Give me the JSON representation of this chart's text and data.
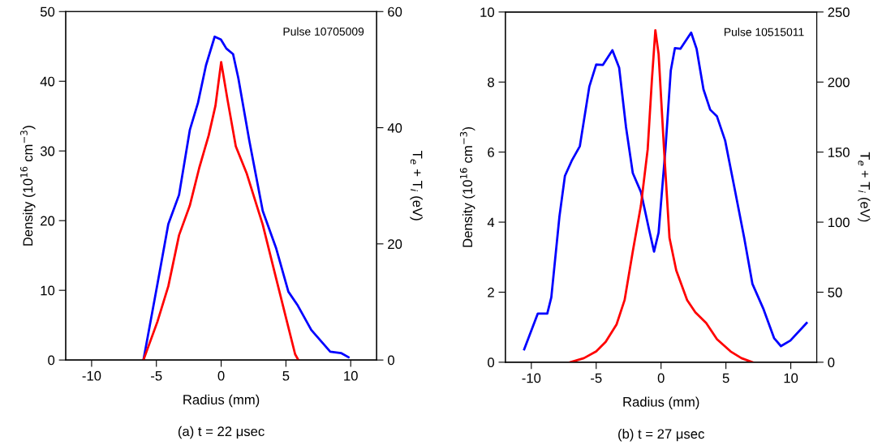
{
  "chart_data": [
    {
      "type": "line",
      "xlabel": "Radius (mm)",
      "ylabel": "Density (10$^{16}$ cm$^{−3}$)",
      "y2label": "T$_{e}$ + T$_{i}$ (eV)",
      "annotations": [
        "Pulse 10705009",
        "(a) t = 22 μsec"
      ],
      "xlim": [
        -12,
        12
      ],
      "xticks": [
        -10,
        -5,
        0,
        5,
        10
      ],
      "ylim": [
        0,
        50
      ],
      "yticks": [
        0,
        10,
        20,
        30,
        40,
        50
      ],
      "y2lim": [
        0,
        60
      ],
      "y2ticks": [
        0,
        20,
        40,
        60
      ],
      "grid": false,
      "legend": false,
      "line_style": "solid",
      "marker": "none",
      "series": [
        {
          "color": "#0000ff",
          "x": [
            -6,
            -4.92,
            -4.08,
            -3.25,
            -2.42,
            -1.79,
            -1.17,
            -0.5,
            -0.02,
            0.4,
            0.92,
            1.33,
            2.17,
            3.21,
            4.25,
            5.19,
            5.92,
            6.96,
            8.42,
            9.25,
            9.83
          ],
          "values": [
            0,
            10.9,
            19.5,
            23.7,
            33,
            36.9,
            42.3,
            46.4,
            46,
            44.7,
            43.9,
            40.4,
            31.5,
            21.4,
            16,
            9.8,
            7.8,
            4.3,
            1.2,
            1.0,
            0.4
          ]
        },
        {
          "color": "#ff0000",
          "axis": "y2",
          "x": [
            -6,
            -4.92,
            -4.08,
            -3.25,
            -2.42,
            -1.69,
            -0.96,
            -0.44,
            0,
            0.5,
            1.13,
            1.96,
            3.21,
            4.25,
            5.08,
            5.71,
            5.96
          ],
          "values": [
            0,
            6.6,
            12.7,
            21.5,
            26.6,
            33.1,
            38.7,
            43.8,
            51.3,
            44.7,
            36.8,
            32.2,
            23.3,
            14,
            6.6,
            1.0,
            0
          ]
        }
      ]
    },
    {
      "type": "line",
      "xlabel": "Radius (mm)",
      "ylabel": "Density (10$^{16}$ cm$^{−3}$)",
      "y2label": "T$_{e}$ + T$_{i}$ (eV)",
      "annotations": [
        "Pulse 10515011",
        "(b) t = 27 μsec"
      ],
      "xlim": [
        -12,
        12
      ],
      "xticks": [
        -10,
        -5,
        0,
        5,
        10
      ],
      "ylim": [
        0,
        10
      ],
      "yticks": [
        0,
        2,
        4,
        6,
        8,
        10
      ],
      "y2lim": [
        0,
        250
      ],
      "y2ticks": [
        0,
        50,
        100,
        150,
        200,
        250
      ],
      "grid": false,
      "legend": false,
      "line_style": "solid",
      "marker": "none",
      "series": [
        {
          "color": "#0000ff",
          "x": [
            -10.55,
            -9.5,
            -8.77,
            -8.46,
            -7.83,
            -7.41,
            -6.89,
            -6.26,
            -5.53,
            -5.0,
            -4.48,
            -3.75,
            -3.23,
            -2.7,
            -2.18,
            -1.55,
            -0.92,
            -0.54,
            -0.19,
            0.34,
            0.75,
            1.07,
            1.49,
            2.32,
            2.74,
            3.27,
            3.79,
            4.31,
            4.94,
            5.68,
            6.41,
            7.04,
            7.87,
            8.71,
            9.24,
            9.97,
            11.22
          ],
          "values": [
            0.37,
            1.39,
            1.39,
            1.85,
            4.17,
            5.32,
            5.75,
            6.17,
            7.87,
            8.5,
            8.49,
            8.91,
            8.41,
            6.71,
            5.4,
            4.86,
            3.78,
            3.16,
            3.7,
            6.1,
            8.33,
            8.97,
            8.95,
            9.41,
            8.95,
            7.79,
            7.21,
            7.02,
            6.33,
            4.94,
            3.55,
            2.24,
            1.54,
            0.69,
            0.46,
            0.62,
            1.12
          ]
        },
        {
          "color": "#ff0000",
          "axis": "y2",
          "x": [
            -6.99,
            -5.95,
            -5.0,
            -4.27,
            -3.43,
            -2.81,
            -2.18,
            -1.55,
            -1.03,
            -0.71,
            -0.44,
            -0.19,
            0.23,
            0.65,
            1.17,
            2.01,
            2.64,
            3.48,
            4.31,
            5.36,
            6.2,
            7.04
          ],
          "values": [
            0,
            2.9,
            7.7,
            14.5,
            27,
            44.4,
            79,
            112,
            152,
            201,
            237,
            220,
            152,
            88.7,
            65.6,
            44.4,
            35.7,
            28,
            16.4,
            7.7,
            2.9,
            0
          ]
        }
      ]
    }
  ]
}
